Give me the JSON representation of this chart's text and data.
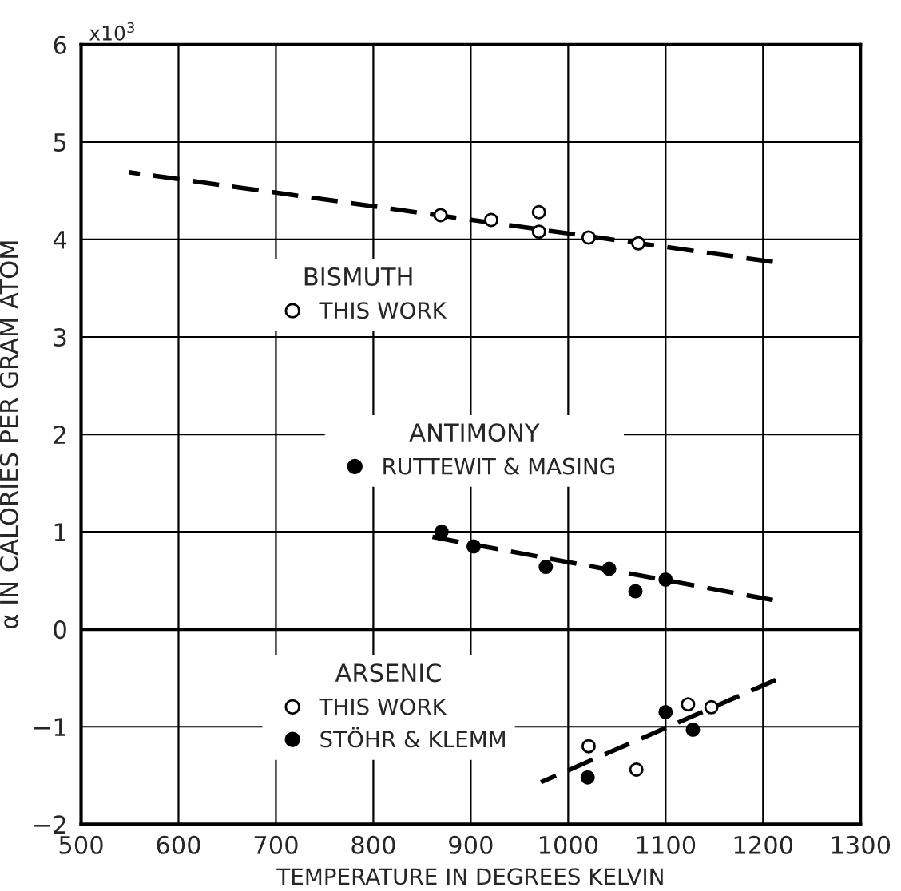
{
  "chart_data": {
    "type": "scatter",
    "xlabel": "TEMPERATURE IN DEGREES KELVIN",
    "ylabel": "α IN CALORIES PER GRAM ATOM",
    "xlim": [
      500,
      1300
    ],
    "xticks": [
      500,
      600,
      700,
      800,
      900,
      1000,
      1100,
      1200,
      1300
    ],
    "ylim": [
      -2,
      6
    ],
    "yticks": [
      {
        "value": -2,
        "label": "−2"
      },
      {
        "value": -1,
        "label": "−1"
      },
      0,
      1,
      2,
      3,
      4,
      5,
      6
    ],
    "grid": true,
    "legend": "center",
    "annotations": [
      "BISMUTH",
      "ANTIMONY",
      "ARSENIC",
      "x10$^{3}$"
    ],
    "series": [
      {
        "name": "THIS WORK",
        "marker": "circle",
        "color": "#ffffff",
        "x": [
          869,
          921,
          970,
          970,
          1021,
          1072
        ],
        "values": [
          4.25,
          4.2,
          4.28,
          4.08,
          4.02,
          3.96
        ]
      },
      {
        "name": "RUTTEWIT & MASING",
        "marker": "circle",
        "color": "#000000",
        "x": [
          870,
          903,
          977,
          1042,
          1069,
          1100
        ],
        "values": [
          1.0,
          0.85,
          0.64,
          0.62,
          0.39,
          0.51
        ]
      },
      {
        "name": "THIS WORK",
        "marker": "circle",
        "color": "#ffffff",
        "x": [
          1021,
          1070,
          1123,
          1147
        ],
        "values": [
          -1.2,
          -1.44,
          -0.77,
          -0.8
        ]
      },
      {
        "name": "STÖHR & KLEMM",
        "marker": "circle",
        "color": "#000000",
        "x": [
          1020,
          1100,
          1128
        ],
        "values": [
          -1.52,
          -0.85,
          -1.03
        ]
      },
      {
        "type": "line",
        "marker": "none",
        "color": "#000000",
        "line_style": "dashed",
        "x": [
          549,
          1210
        ],
        "values": [
          4.69,
          3.77
        ]
      },
      {
        "type": "line",
        "marker": "none",
        "color": "#000000",
        "line_style": "dashed",
        "x": [
          859,
          1210
        ],
        "values": [
          0.95,
          0.3
        ]
      },
      {
        "type": "line",
        "marker": "none",
        "color": "#000000",
        "line_style": "dashed",
        "x": [
          972,
          1213
        ],
        "values": [
          -1.57,
          -0.52
        ]
      }
    ]
  }
}
